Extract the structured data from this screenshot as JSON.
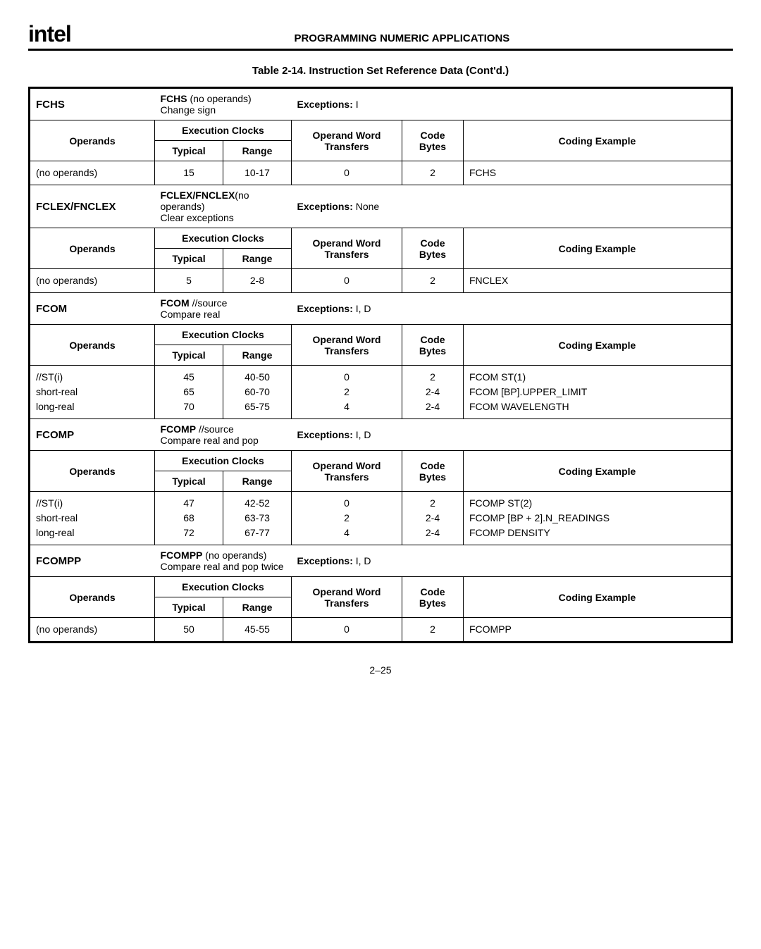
{
  "logo_text": "intel",
  "header_title": "PROGRAMMING NUMERIC APPLICATIONS",
  "table_caption": "Table 2-14.  Instruction Set Reference Data (Cont'd.)",
  "page_number": "2–25",
  "col_headers": {
    "operands": "Operands",
    "exec_clocks": "Execution Clocks",
    "typical": "Typical",
    "range": "Range",
    "operand_word": "Operand Word Transfers",
    "code_bytes": "Code Bytes",
    "coding_example": "Coding Example"
  },
  "sections": [
    {
      "mnemonic": "FCHS",
      "syntax": "FCHS",
      "syntax_suffix": " (no operands)",
      "desc2": "Change sign",
      "exceptions_label": "Exceptions:",
      "exceptions": "I",
      "rows": [
        {
          "operands": "(no operands)",
          "typical": "15",
          "range": "10-17",
          "opword": "0",
          "codebytes": "2",
          "example": "FCHS"
        }
      ]
    },
    {
      "mnemonic": "FCLEX/FNCLEX",
      "syntax": "FCLEX/FNCLEX",
      "syntax_suffix": "(no operands)",
      "desc2": "Clear exceptions",
      "exceptions_label": "Exceptions:",
      "exceptions": "None",
      "rows": [
        {
          "operands": "(no operands)",
          "typical": "5",
          "range": "2-8",
          "opword": "0",
          "codebytes": "2",
          "example": "FNCLEX"
        }
      ]
    },
    {
      "mnemonic": "FCOM",
      "syntax": "FCOM",
      "syntax_suffix": " //source",
      "desc2": "Compare real",
      "exceptions_label": "Exceptions:",
      "exceptions": "I, D",
      "rows": [
        {
          "operands": "//ST(i)\nshort-real\nlong-real",
          "typical": "45\n65\n70",
          "range": "40-50\n60-70\n65-75",
          "opword": "0\n2\n4",
          "codebytes": "2\n2-4\n2-4",
          "example": "FCOM ST(1)\nFCOM [BP].UPPER_LIMIT\nFCOM WAVELENGTH"
        }
      ]
    },
    {
      "mnemonic": "FCOMP",
      "syntax": "FCOMP",
      "syntax_suffix": " //source",
      "desc2": "Compare real and pop",
      "exceptions_label": "Exceptions:",
      "exceptions": "I, D",
      "rows": [
        {
          "operands": "//ST(i)\nshort-real\nlong-real",
          "typical": "47\n68\n72",
          "range": "42-52\n63-73\n67-77",
          "opword": "0\n2\n4",
          "codebytes": "2\n2-4\n2-4",
          "example": "FCOMP ST(2)\nFCOMP [BP + 2].N_READINGS\nFCOMP DENSITY"
        }
      ]
    },
    {
      "mnemonic": "FCOMPP",
      "syntax": "FCOMPP",
      "syntax_suffix": " (no operands)",
      "desc2": "Compare real and pop twice",
      "exceptions_label": "Exceptions:",
      "exceptions": "I, D",
      "rows": [
        {
          "operands": "(no operands)",
          "typical": "50",
          "range": "45-55",
          "opword": "0",
          "codebytes": "2",
          "example": "FCOMPP"
        }
      ]
    }
  ]
}
